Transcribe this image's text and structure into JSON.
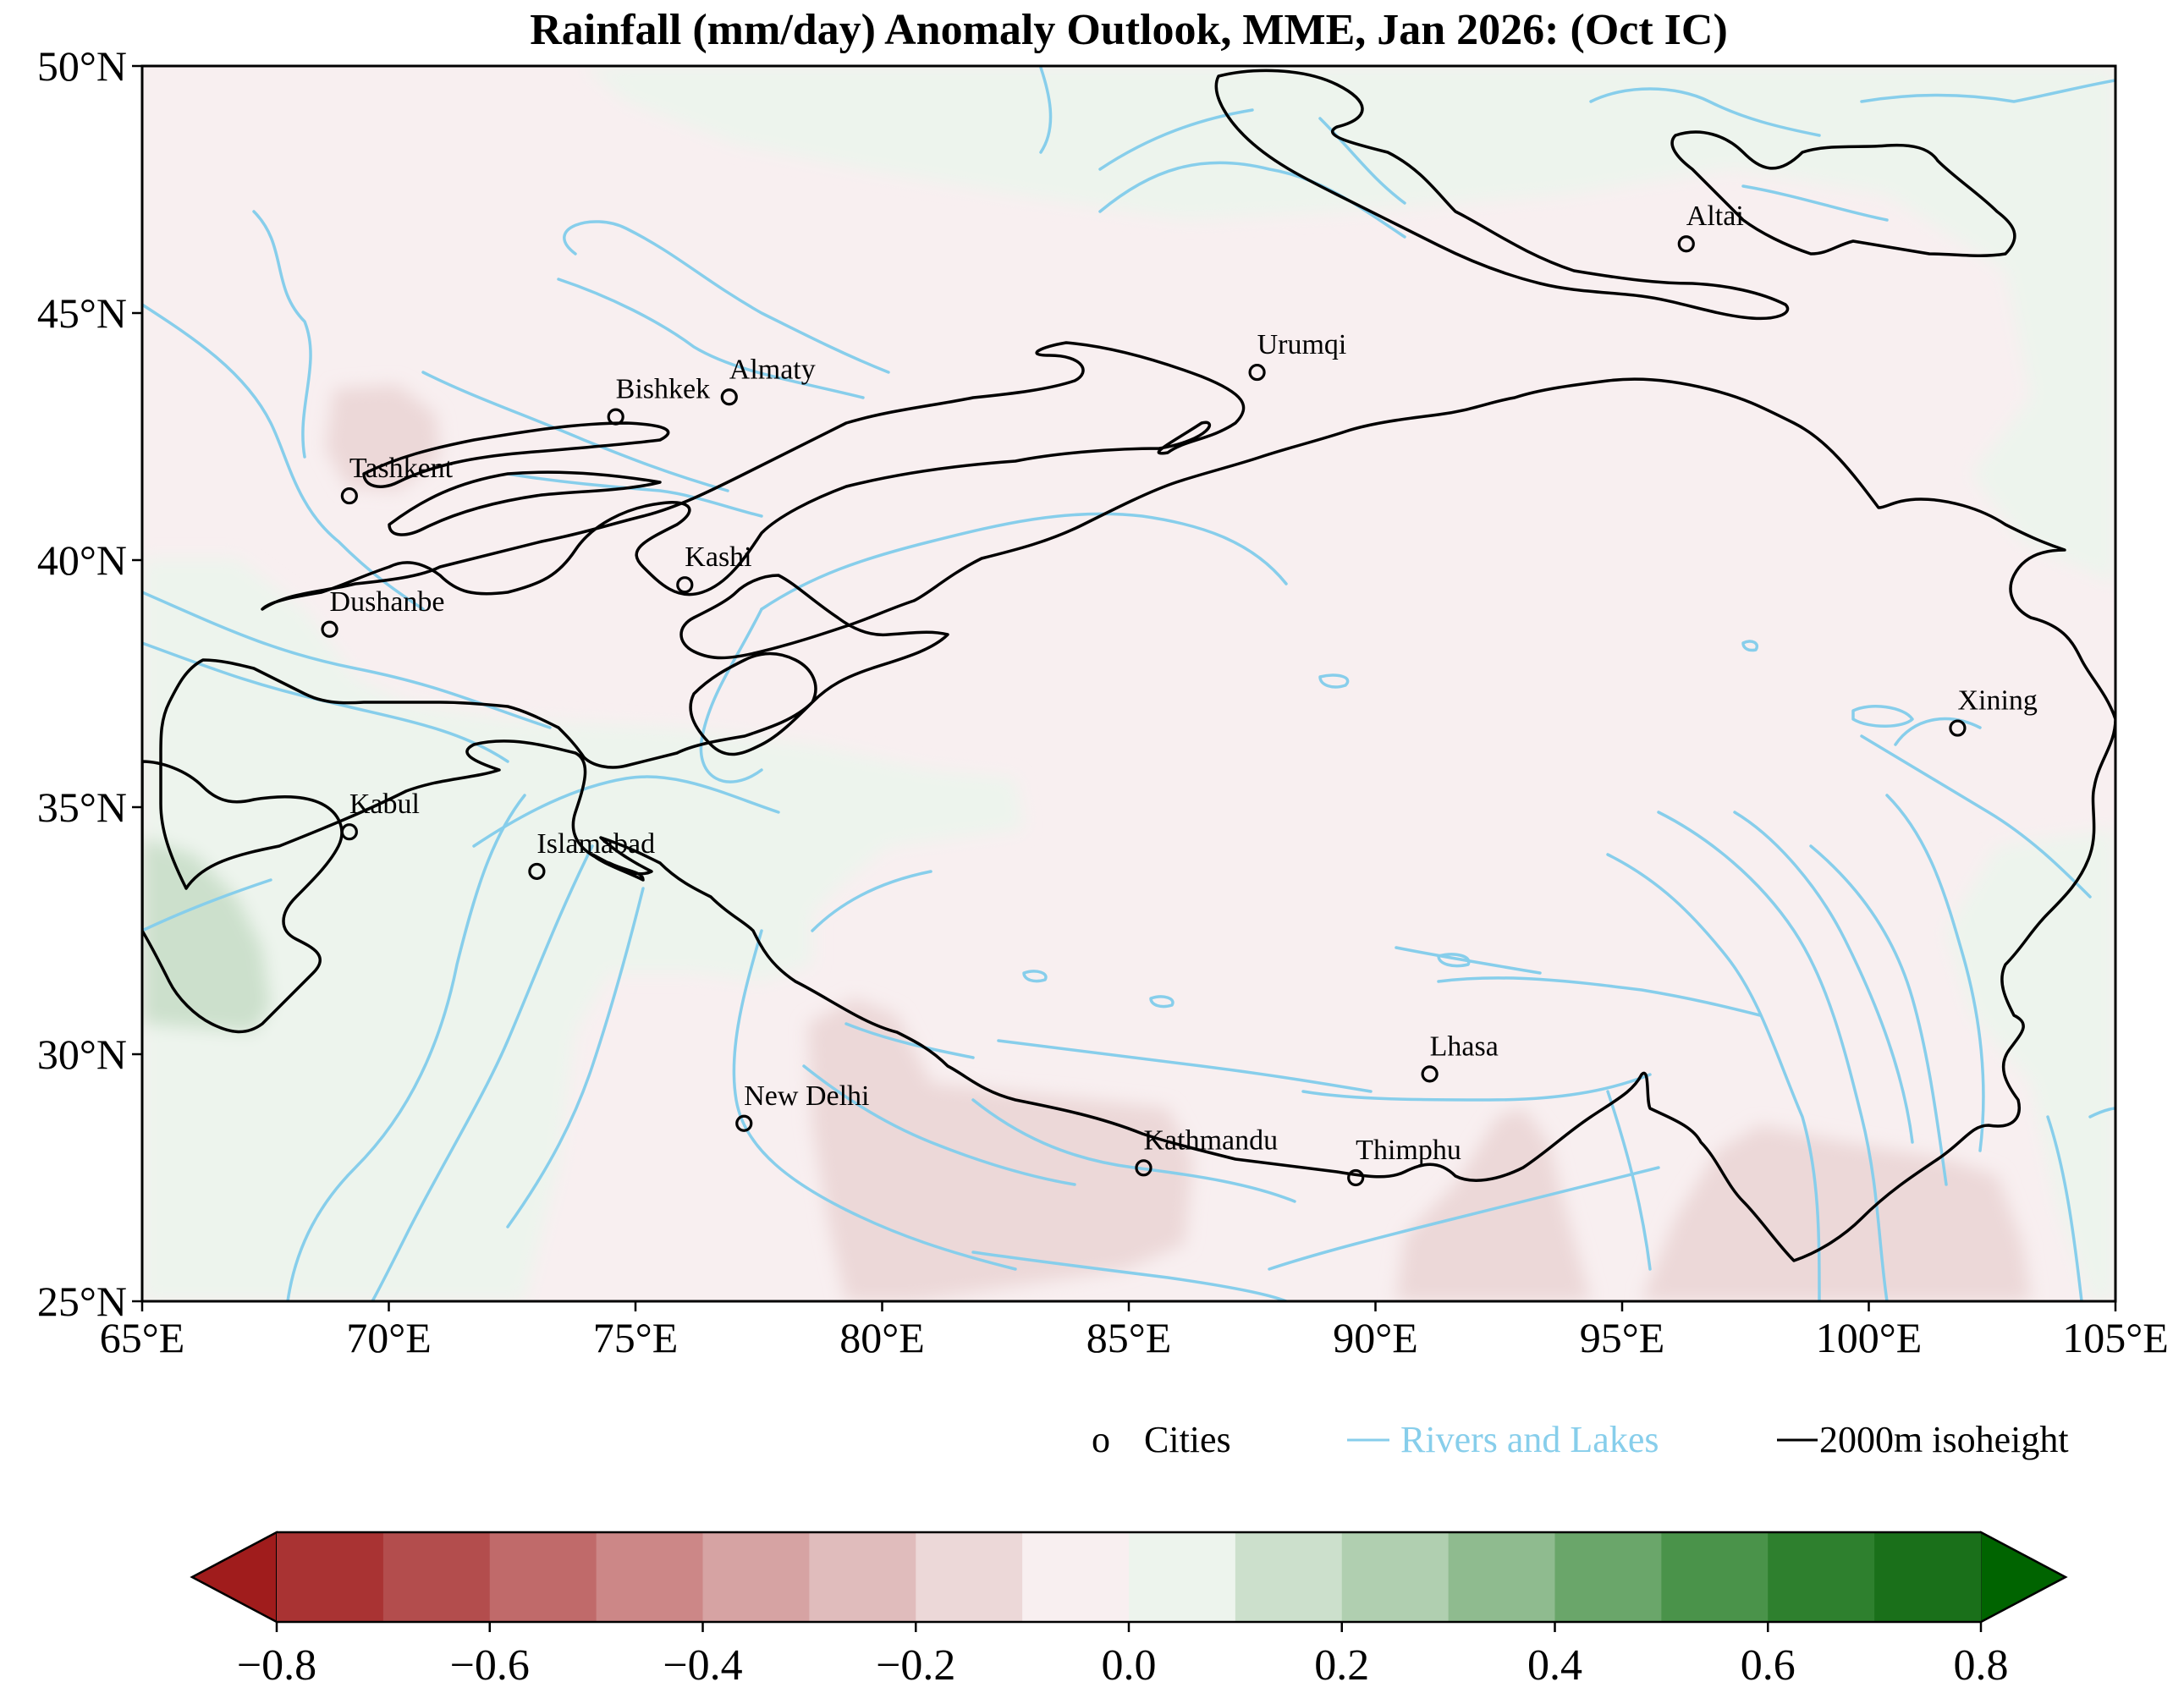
{
  "title": "Rainfall (mm/day) Anomaly Outlook, MME, Jan  2026:  (Oct IC)",
  "map": {
    "lon_range": [
      65,
      105
    ],
    "lat_range": [
      25,
      50
    ],
    "x_ticks": [
      "65°E",
      "70°E",
      "75°E",
      "80°E",
      "85°E",
      "90°E",
      "95°E",
      "100°E",
      "105°E"
    ],
    "y_ticks": [
      "25°N",
      "30°N",
      "35°N",
      "40°N",
      "45°N",
      "50°N"
    ],
    "x_tick_values": [
      65,
      70,
      75,
      80,
      85,
      90,
      95,
      100,
      105
    ],
    "y_tick_values": [
      25,
      30,
      35,
      40,
      45,
      50
    ],
    "background_anomaly_color": "#f8eff0",
    "river_color": "#87ceeb",
    "isoheight_color": "#000000"
  },
  "cities": [
    {
      "name": "Altai",
      "lon": 96.3,
      "lat": 46.4
    },
    {
      "name": "Urumqi",
      "lon": 87.6,
      "lat": 43.8
    },
    {
      "name": "Almaty",
      "lon": 76.9,
      "lat": 43.3
    },
    {
      "name": "Bishkek",
      "lon": 74.6,
      "lat": 42.9
    },
    {
      "name": "Tashkent",
      "lon": 69.2,
      "lat": 41.3
    },
    {
      "name": "Kashi",
      "lon": 76.0,
      "lat": 39.5
    },
    {
      "name": "Dushanbe",
      "lon": 68.8,
      "lat": 38.6
    },
    {
      "name": "Xining",
      "lon": 101.8,
      "lat": 36.6
    },
    {
      "name": "Kabul",
      "lon": 69.2,
      "lat": 34.5
    },
    {
      "name": "Islamabad",
      "lon": 73.0,
      "lat": 33.7
    },
    {
      "name": "Lhasa",
      "lon": 91.1,
      "lat": 29.6
    },
    {
      "name": "New Delhi",
      "lon": 77.2,
      "lat": 28.6
    },
    {
      "name": "Kathmandu",
      "lon": 85.3,
      "lat": 27.7
    },
    {
      "name": "Thimphu",
      "lon": 89.6,
      "lat": 27.5
    }
  ],
  "anomaly_regions": [
    {
      "name": "wet-northeast",
      "value": 0.05
    },
    {
      "name": "wet-west",
      "value": 0.05
    },
    {
      "name": "wet-afghanistan",
      "value": 0.15
    },
    {
      "name": "wet-east-edge",
      "value": 0.05
    },
    {
      "name": "dry-tashkent",
      "value": -0.15
    },
    {
      "name": "dry-nepal",
      "value": -0.15
    },
    {
      "name": "dry-bhutan",
      "value": -0.15
    },
    {
      "name": "dry-myanmar",
      "value": -0.15
    }
  ],
  "legend": {
    "cities_marker": "o",
    "cities_label": "Cities",
    "rivers_label": "Rivers and Lakes",
    "isoheight_label": "2000m isoheight"
  },
  "colorbar": {
    "min": -0.8,
    "max": 0.8,
    "step": 0.1,
    "tick_values": [
      -0.8,
      -0.6,
      -0.4,
      -0.2,
      0.0,
      0.2,
      0.4,
      0.6,
      0.8
    ],
    "tick_labels": [
      "−0.8",
      "−0.6",
      "−0.4",
      "−0.2",
      "0.0",
      "0.2",
      "0.4",
      "0.6",
      "0.8"
    ],
    "under_color": "#a01c1c",
    "over_color": "#006400",
    "colors": [
      "#a93333",
      "#b34d4d",
      "#c06a6a",
      "#cc8787",
      "#d6a3a3",
      "#e0bcbc",
      "#ecd8d8",
      "#f8eff0",
      "#edf4ed",
      "#cce0cc",
      "#b0cfb0",
      "#8fbb8f",
      "#6aa66a",
      "#4a934a",
      "#2e802e",
      "#1a701a"
    ]
  }
}
